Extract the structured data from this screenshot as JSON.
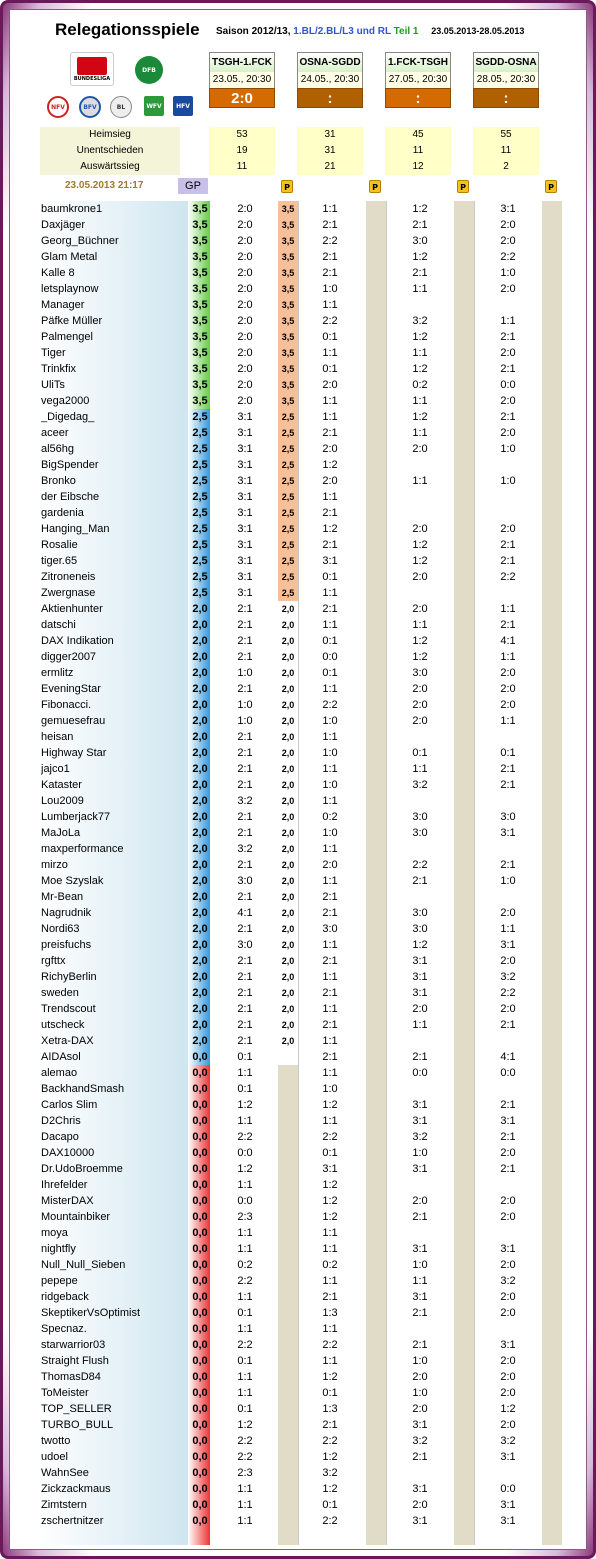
{
  "title": "Relegationsspiele",
  "season": {
    "prefix": "Saison 2012/13,",
    "leagues": "1.BL/2.BL/L3 und RL",
    "part": "Teil 1",
    "dates": "23.05.2013-28.05.2013"
  },
  "logos": [
    "BUNDESLIGA",
    "DFB",
    "NFV",
    "BFV",
    "BL",
    "WFV",
    "HFV"
  ],
  "matches": [
    {
      "teams": "TSGH-1.FCK",
      "datetime": "23.05., 20:30",
      "result": "2:0",
      "home": "53",
      "draw": "19",
      "away": "11"
    },
    {
      "teams": "OSNA-SGDD",
      "datetime": "24.05., 20:30",
      "result": ":",
      "home": "31",
      "draw": "31",
      "away": "21"
    },
    {
      "teams": "1.FCK-TSGH",
      "datetime": "27.05., 20:30",
      "result": ":",
      "home": "45",
      "draw": "11",
      "away": "12"
    },
    {
      "teams": "SGDD-OSNA",
      "datetime": "28.05., 20:30",
      "result": ":",
      "home": "55",
      "draw": "11",
      "away": "2"
    }
  ],
  "stat_labels": {
    "home": "Heimsieg",
    "draw": "Unentschieden",
    "away": "Auswärtssieg"
  },
  "timestamp": "23.05.2013 21:17",
  "gp_label": "GP",
  "p_label": "P",
  "colors": {
    "green": "#66cc44",
    "blue": "#3399dd",
    "red": "#ee3333",
    "orange": "#d46a00"
  },
  "rows": [
    [
      "baumkrone1",
      "3,5",
      "2:0",
      "3,5",
      "1:1",
      "1:2",
      "3:1"
    ],
    [
      "Daxjäger",
      "3,5",
      "2:0",
      "3,5",
      "2:1",
      "2:1",
      "2:0"
    ],
    [
      "Georg_Büchner",
      "3,5",
      "2:0",
      "3,5",
      "2:2",
      "3:0",
      "2:0"
    ],
    [
      "Glam Metal",
      "3,5",
      "2:0",
      "3,5",
      "2:1",
      "1:2",
      "2:2"
    ],
    [
      "Kalle 8",
      "3,5",
      "2:0",
      "3,5",
      "2:1",
      "2:1",
      "1:0"
    ],
    [
      "letsplaynow",
      "3,5",
      "2:0",
      "3,5",
      "1:0",
      "1:1",
      "2:0"
    ],
    [
      "Manager",
      "3,5",
      "2:0",
      "3,5",
      "1:1",
      "",
      ""
    ],
    [
      "Päfke Müller",
      "3,5",
      "2:0",
      "3,5",
      "2:2",
      "3:2",
      "1:1"
    ],
    [
      "Palmengel",
      "3,5",
      "2:0",
      "3,5",
      "0:1",
      "1:2",
      "2:1"
    ],
    [
      "Tiger",
      "3,5",
      "2:0",
      "3,5",
      "1:1",
      "1:1",
      "2:0"
    ],
    [
      "Trinkfix",
      "3,5",
      "2:0",
      "3,5",
      "0:1",
      "1:2",
      "2:1"
    ],
    [
      "UliTs",
      "3,5",
      "2:0",
      "3,5",
      "2:0",
      "0:2",
      "0:0"
    ],
    [
      "vega2000",
      "3,5",
      "2:0",
      "3,5",
      "1:1",
      "1:1",
      "2:0"
    ],
    [
      "_Digedag_",
      "2,5",
      "3:1",
      "2,5",
      "1:1",
      "1:2",
      "2:1"
    ],
    [
      "aceer",
      "2,5",
      "3:1",
      "2,5",
      "2:1",
      "1:1",
      "2:0"
    ],
    [
      "al56hg",
      "2,5",
      "3:1",
      "2,5",
      "2:0",
      "2:0",
      "1:0"
    ],
    [
      "BigSpender",
      "2,5",
      "3:1",
      "2,5",
      "1:2",
      "",
      ""
    ],
    [
      "Bronko",
      "2,5",
      "3:1",
      "2,5",
      "2:0",
      "1:1",
      "1:0"
    ],
    [
      "der Eibsche",
      "2,5",
      "3:1",
      "2,5",
      "1:1",
      "",
      ""
    ],
    [
      "gardenia",
      "2,5",
      "3:1",
      "2,5",
      "2:1",
      "",
      ""
    ],
    [
      "Hanging_Man",
      "2,5",
      "3:1",
      "2,5",
      "1:2",
      "2:0",
      "2:0"
    ],
    [
      "Rosalie",
      "2,5",
      "3:1",
      "2,5",
      "2:1",
      "1:2",
      "2:1"
    ],
    [
      "tiger.65",
      "2,5",
      "3:1",
      "2,5",
      "3:1",
      "1:2",
      "2:1"
    ],
    [
      "Zitroneneis",
      "2,5",
      "3:1",
      "2,5",
      "0:1",
      "2:0",
      "2:2"
    ],
    [
      "Zwergnase",
      "2,5",
      "3:1",
      "2,5",
      "1:1",
      "",
      ""
    ],
    [
      "Aktienhunter",
      "2,0",
      "2:1",
      "2,0",
      "2:1",
      "2:0",
      "1:1"
    ],
    [
      "datschi",
      "2,0",
      "2:1",
      "2,0",
      "1:1",
      "1:1",
      "2:1"
    ],
    [
      "DAX Indikation",
      "2,0",
      "2:1",
      "2,0",
      "0:1",
      "1:2",
      "4:1"
    ],
    [
      "digger2007",
      "2,0",
      "2:1",
      "2,0",
      "0:0",
      "1:2",
      "1:1"
    ],
    [
      "ermlitz",
      "2,0",
      "1:0",
      "2,0",
      "0:1",
      "3:0",
      "2:0"
    ],
    [
      "EveningStar",
      "2,0",
      "2:1",
      "2,0",
      "1:1",
      "2:0",
      "2:0"
    ],
    [
      "Fibonacci.",
      "2,0",
      "1:0",
      "2,0",
      "2:2",
      "2:0",
      "2:0"
    ],
    [
      "gemuesefrau",
      "2,0",
      "1:0",
      "2,0",
      "1:0",
      "2:0",
      "1:1"
    ],
    [
      "heisan",
      "2,0",
      "2:1",
      "2,0",
      "1:1",
      "",
      ""
    ],
    [
      "Highway Star",
      "2,0",
      "2:1",
      "2,0",
      "1:0",
      "0:1",
      "0:1"
    ],
    [
      "jajco1",
      "2,0",
      "2:1",
      "2,0",
      "1:1",
      "1:1",
      "2:1"
    ],
    [
      "Kataster",
      "2,0",
      "2:1",
      "2,0",
      "1:0",
      "3:2",
      "2:1"
    ],
    [
      "Lou2009",
      "2,0",
      "3:2",
      "2,0",
      "1:1",
      "",
      ""
    ],
    [
      "Lumberjack77",
      "2,0",
      "2:1",
      "2,0",
      "0:2",
      "3:0",
      "3:0"
    ],
    [
      "MaJoLa",
      "2,0",
      "2:1",
      "2,0",
      "1:0",
      "3:0",
      "3:1"
    ],
    [
      "maxperformance",
      "2,0",
      "3:2",
      "2,0",
      "1:1",
      "",
      ""
    ],
    [
      "mirzo",
      "2,0",
      "2:1",
      "2,0",
      "2:0",
      "2:2",
      "2:1"
    ],
    [
      "Moe Szyslak",
      "2,0",
      "3:0",
      "2,0",
      "1:1",
      "2:1",
      "1:0"
    ],
    [
      "Mr-Bean",
      "2,0",
      "2:1",
      "2,0",
      "2:1",
      "",
      ""
    ],
    [
      "Nagrudnik",
      "2,0",
      "4:1",
      "2,0",
      "2:1",
      "3:0",
      "2:0"
    ],
    [
      "Nordi63",
      "2,0",
      "2:1",
      "2,0",
      "3:0",
      "3:0",
      "1:1"
    ],
    [
      "preisfuchs",
      "2,0",
      "3:0",
      "2,0",
      "1:1",
      "1:2",
      "3:1"
    ],
    [
      "rgfttx",
      "2,0",
      "2:1",
      "2,0",
      "2:1",
      "3:1",
      "2:0"
    ],
    [
      "RichyBerlin",
      "2,0",
      "2:1",
      "2,0",
      "1:1",
      "3:1",
      "3:2"
    ],
    [
      "sweden",
      "2,0",
      "2:1",
      "2,0",
      "2:1",
      "3:1",
      "2:2"
    ],
    [
      "Trendscout",
      "2,0",
      "2:1",
      "2,0",
      "1:1",
      "2:0",
      "2:0"
    ],
    [
      "utscheck",
      "2,0",
      "2:1",
      "2,0",
      "2:1",
      "1:1",
      "2:1"
    ],
    [
      "Xetra-DAX",
      "2,0",
      "2:1",
      "2,0",
      "1:1",
      "",
      ""
    ],
    [
      "AIDAsol",
      "0,0",
      "0:1",
      "",
      "2:1",
      "2:1",
      "4:1"
    ],
    [
      "alemao",
      "0,0",
      "1:1",
      "",
      "1:1",
      "0:0",
      "0:0"
    ],
    [
      "BackhandSmash",
      "0,0",
      "0:1",
      "",
      "1:0",
      "",
      ""
    ],
    [
      "Carlos Slim",
      "0,0",
      "1:2",
      "",
      "1:2",
      "3:1",
      "2:1"
    ],
    [
      "D2Chris",
      "0,0",
      "1:1",
      "",
      "1:1",
      "3:1",
      "3:1"
    ],
    [
      "Dacapo",
      "0,0",
      "2:2",
      "",
      "2:2",
      "3:2",
      "2:1"
    ],
    [
      "DAX10000",
      "0,0",
      "0:0",
      "",
      "0:1",
      "1:0",
      "2:0"
    ],
    [
      "Dr.UdoBroemme",
      "0,0",
      "1:2",
      "",
      "3:1",
      "3:1",
      "2:1"
    ],
    [
      "Ihrefelder",
      "0,0",
      "1:1",
      "",
      "1:2",
      "",
      ""
    ],
    [
      "MisterDAX",
      "0,0",
      "0:0",
      "",
      "1:2",
      "2:0",
      "2:0"
    ],
    [
      "Mountainbiker",
      "0,0",
      "2:3",
      "",
      "1:2",
      "2:1",
      "2:0"
    ],
    [
      "moya",
      "0,0",
      "1:1",
      "",
      "1:1",
      "",
      ""
    ],
    [
      "nightfly",
      "0,0",
      "1:1",
      "",
      "1:1",
      "3:1",
      "3:1"
    ],
    [
      "Null_Null_Sieben",
      "0,0",
      "0:2",
      "",
      "0:2",
      "1:0",
      "2:0"
    ],
    [
      "pepepe",
      "0,0",
      "2:2",
      "",
      "1:1",
      "1:1",
      "3:2"
    ],
    [
      "ridgeback",
      "0,0",
      "1:1",
      "",
      "2:1",
      "3:1",
      "2:0"
    ],
    [
      "SkeptikerVsOptimist",
      "0,0",
      "0:1",
      "",
      "1:3",
      "2:1",
      "2:0"
    ],
    [
      "Specnaz.",
      "0,0",
      "1:1",
      "",
      "1:1",
      "",
      ""
    ],
    [
      "starwarrior03",
      "0,0",
      "2:2",
      "",
      "2:2",
      "2:1",
      "3:1"
    ],
    [
      "Straight Flush",
      "0,0",
      "0:1",
      "",
      "1:1",
      "1:0",
      "2:0"
    ],
    [
      "ThomasD84",
      "0,0",
      "1:1",
      "",
      "1:2",
      "2:0",
      "2:0"
    ],
    [
      "ToMeister",
      "0,0",
      "1:1",
      "",
      "0:1",
      "1:0",
      "2:0"
    ],
    [
      "TOP_SELLER",
      "0,0",
      "0:1",
      "",
      "1:3",
      "2:0",
      "1:2"
    ],
    [
      "TURBO_BULL",
      "0,0",
      "1:2",
      "",
      "2:1",
      "3:1",
      "2:0"
    ],
    [
      "twotto",
      "0,0",
      "2:2",
      "",
      "2:2",
      "3:2",
      "3:2"
    ],
    [
      "udoel",
      "0,0",
      "2:2",
      "",
      "1:2",
      "2:1",
      "3:1"
    ],
    [
      "WahnSee",
      "0,0",
      "2:3",
      "",
      "3:2",
      "",
      ""
    ],
    [
      "Zickzackmaus",
      "0,0",
      "1:1",
      "",
      "1:2",
      "3:1",
      "0:0"
    ],
    [
      "Zimtstern",
      "0,0",
      "1:1",
      "",
      "0:1",
      "2:0",
      "3:1"
    ],
    [
      "zschertnitzer",
      "0,0",
      "1:1",
      "",
      "2:2",
      "3:1",
      "3:1"
    ]
  ]
}
